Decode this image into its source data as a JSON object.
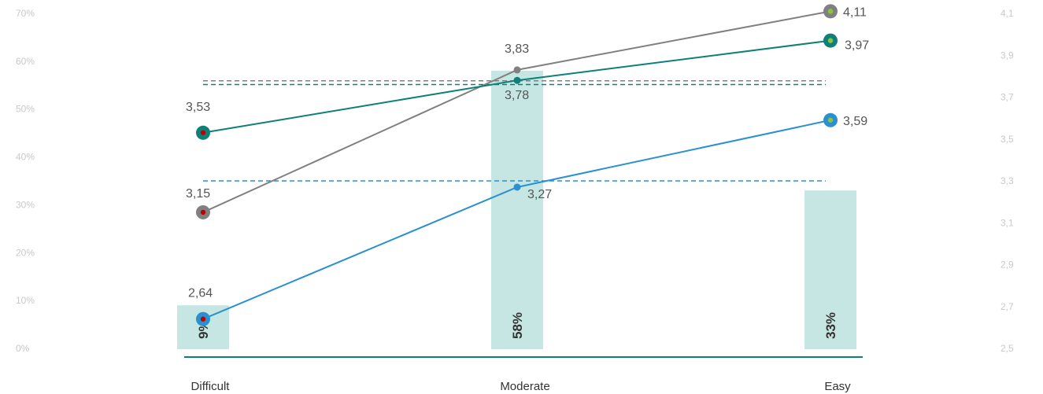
{
  "chart_data": {
    "type": "bar",
    "categories": [
      "Difficult",
      "Moderate",
      "Easy"
    ],
    "left_axis": {
      "ticks": [
        "0%",
        "10%",
        "20%",
        "30%",
        "40%",
        "50%",
        "60%",
        "70%"
      ],
      "ylim": [
        0,
        70
      ]
    },
    "right_axis": {
      "ticks": [
        "2,5",
        "2,7",
        "2,9",
        "3,1",
        "3,3",
        "3,5",
        "3,7",
        "3,9",
        "4,1"
      ],
      "ylim": [
        2.5,
        4.1
      ]
    },
    "bars": {
      "values": [
        9,
        58,
        33
      ],
      "labels": [
        "9%",
        "58%",
        "33%"
      ],
      "color": "#c5e6e2"
    },
    "series": [
      {
        "values": [
          3.15,
          3.83,
          4.11
        ],
        "labels": [
          "3,15",
          "3,83",
          "4,11"
        ],
        "color": "#808080",
        "average": 3.778
      },
      {
        "values": [
          3.53,
          3.78,
          3.97
        ],
        "labels": [
          "3,53",
          "3,78",
          "3,97"
        ],
        "color": "#0e7f79",
        "average": 3.76
      },
      {
        "values": [
          2.64,
          3.27,
          3.59
        ],
        "labels": [
          "2,64",
          "3,27",
          "3,59"
        ],
        "color": "#2a90d0",
        "average": 3.3
      }
    ],
    "endpoint_marker_colors": {
      "start": "#c00000",
      "end": "#8cc43c"
    },
    "baseline_color": "#0e7f79",
    "grid": false
  }
}
